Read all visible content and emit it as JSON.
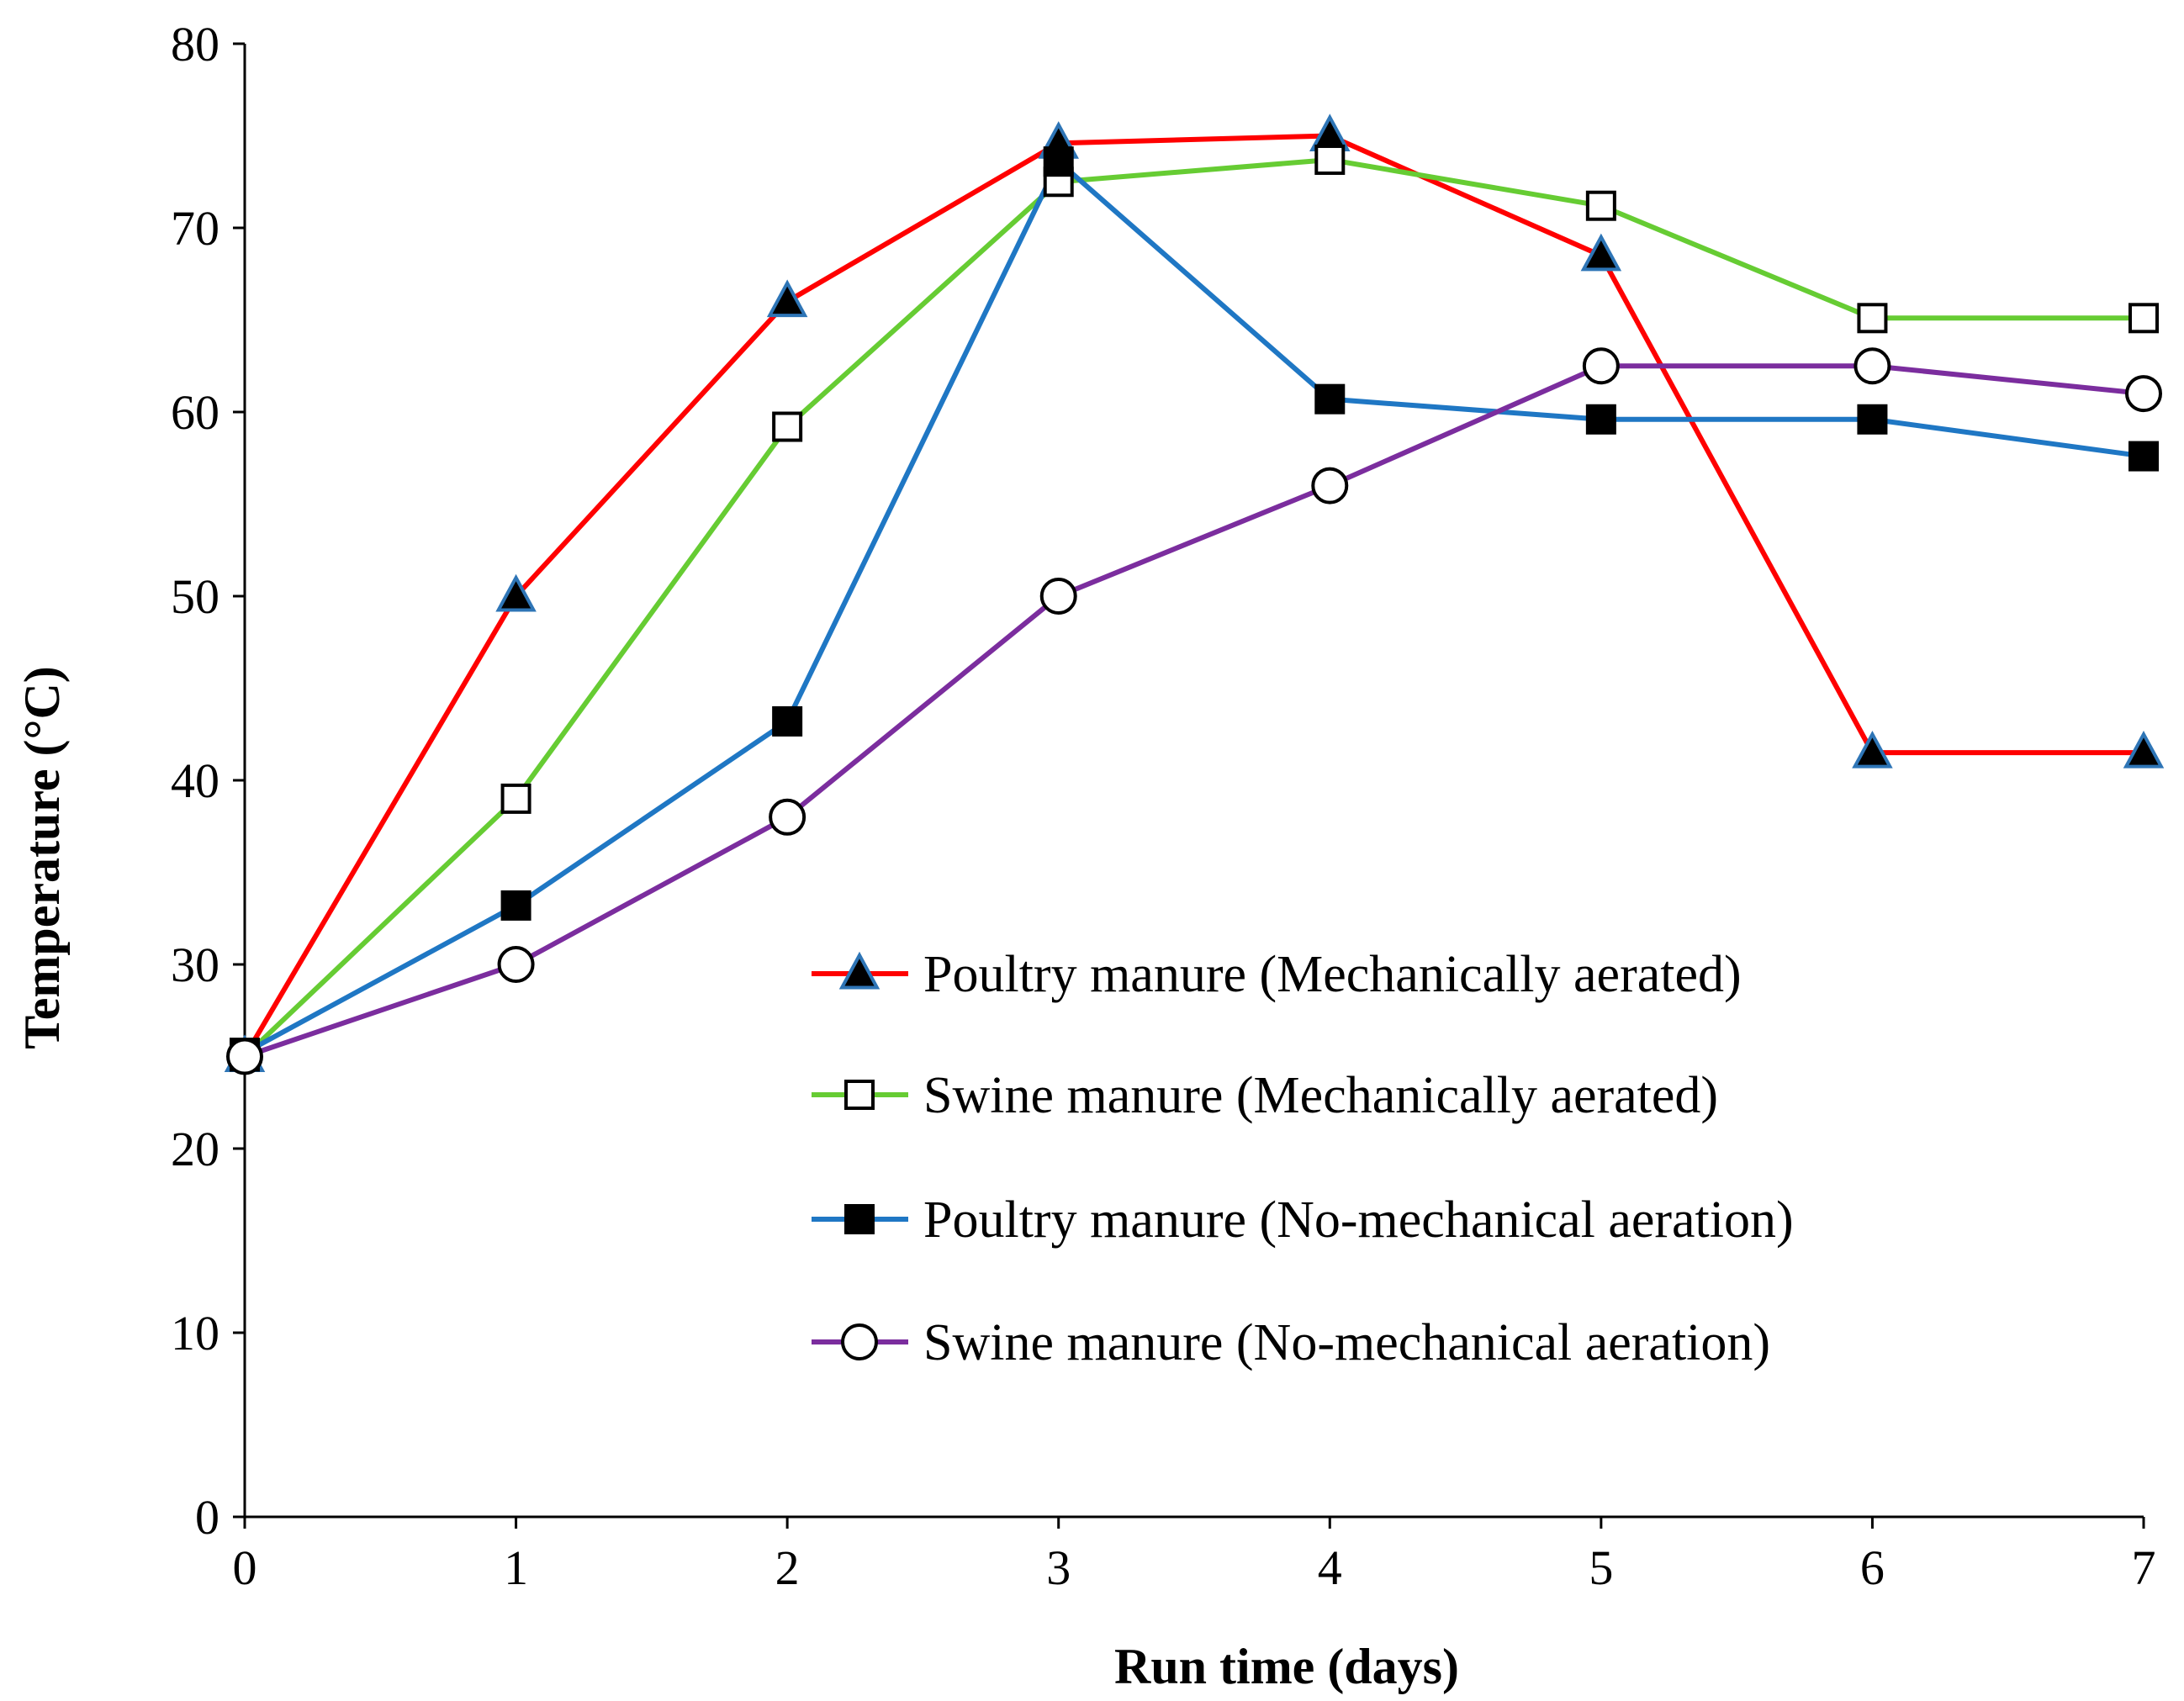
{
  "chart_data": {
    "type": "line",
    "title": "",
    "xlabel": "Run time  (days)",
    "ylabel": "Temperature  (°C)",
    "x": [
      0,
      1,
      2,
      3,
      4,
      5,
      6,
      7
    ],
    "xlim": [
      0,
      7
    ],
    "ylim": [
      0,
      80
    ],
    "yticks": [
      0,
      10,
      20,
      30,
      40,
      50,
      60,
      70,
      80
    ],
    "xticks": [
      0,
      1,
      2,
      3,
      4,
      5,
      6,
      7
    ],
    "grid": false,
    "legend_position": "center-right",
    "series": [
      {
        "name": "Poultry manure (Mechanically aerated)",
        "color": "#ff0000",
        "marker": "triangle-filled",
        "marker_fill": "#000000",
        "marker_stroke": "#2e75b6",
        "values": [
          25,
          50,
          66,
          74.6,
          75,
          68.5,
          41.5,
          41.5
        ]
      },
      {
        "name": "Swine manure (Mechanically aerated)",
        "color": "#66cc33",
        "marker": "square-open",
        "marker_fill": "#ffffff",
        "marker_stroke": "#000000",
        "values": [
          25,
          39,
          59.2,
          72.5,
          73.7,
          71.2,
          65.1,
          65.1
        ]
      },
      {
        "name": "Poultry manure (No-mechanical aeration)",
        "color": "#1f77c4",
        "marker": "square-filled",
        "marker_fill": "#000000",
        "marker_stroke": "#000000",
        "values": [
          25.2,
          33.2,
          43.2,
          73.6,
          60.7,
          59.6,
          59.6,
          57.6
        ]
      },
      {
        "name": "Swine manure (No-mechanical aeration)",
        "color": "#7b2d9e",
        "marker": "circle-open",
        "marker_fill": "#ffffff",
        "marker_stroke": "#000000",
        "values": [
          25,
          30,
          38,
          50,
          56,
          62.5,
          62.5,
          61
        ]
      }
    ]
  }
}
